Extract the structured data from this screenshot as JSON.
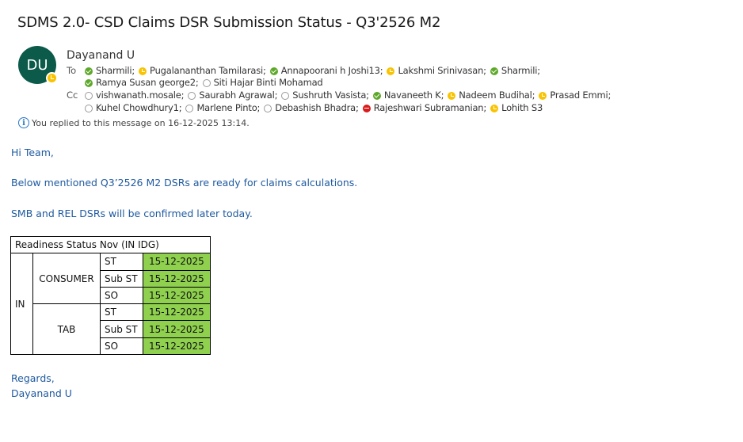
{
  "email": {
    "subject": "SDMS 2.0- CSD Claims DSR Submission Status - Q3'2526 M2",
    "sender": {
      "name": "Dayanand U",
      "initials": "DU",
      "status": "away",
      "avatar_color": "#0b5a4a"
    },
    "to_label": "To",
    "cc_label": "Cc",
    "to": [
      {
        "name": "Sharmili;",
        "status": "available"
      },
      {
        "name": "Pugalananthan Tamilarasi;",
        "status": "away"
      },
      {
        "name": "Annapoorani h Joshi13;",
        "status": "available"
      },
      {
        "name": "Lakshmi Srinivasan;",
        "status": "away"
      },
      {
        "name": "Sharmili;",
        "status": "available"
      },
      {
        "name": "Ramya Susan george2;",
        "status": "available"
      },
      {
        "name": "Siti Hajar Binti Mohamad",
        "status": "offline"
      }
    ],
    "cc": [
      {
        "name": "vishwanath.mosale;",
        "status": "offline"
      },
      {
        "name": "Saurabh Agrawal;",
        "status": "offline"
      },
      {
        "name": "Sushruth Vasista;",
        "status": "offline"
      },
      {
        "name": "Navaneeth K;",
        "status": "available"
      },
      {
        "name": "Nadeem Budihal;",
        "status": "away"
      },
      {
        "name": "Prasad Emmi;",
        "status": "away"
      },
      {
        "name": "Kuhel Chowdhury1;",
        "status": "offline"
      },
      {
        "name": "Marlene Pinto;",
        "status": "offline"
      },
      {
        "name": "Debashish Bhadra;",
        "status": "offline"
      },
      {
        "name": "Rajeshwari Subramanian;",
        "status": "busy"
      },
      {
        "name": "Lohith S3",
        "status": "away"
      }
    ],
    "info_text": "You replied to this message on 16-12-2025 13:14.",
    "body": {
      "greeting": "Hi Team,",
      "line1": "Below mentioned Q3’2526 M2 DSRs are ready for claims calculations.",
      "line2": "SMB and REL DSRs will be confirmed later today.",
      "regards": "Regards,",
      "signature": "Dayanand U"
    },
    "table": {
      "header": "Readiness Status Nov (IN IDG)",
      "region": "IN",
      "groups": [
        {
          "name": "CONSUMER",
          "rows": [
            {
              "type": "ST",
              "date": "15-12-2025"
            },
            {
              "type": "Sub ST",
              "date": "15-12-2025"
            },
            {
              "type": "SO",
              "date": "15-12-2025"
            }
          ]
        },
        {
          "name": "TAB",
          "rows": [
            {
              "type": "ST",
              "date": "15-12-2025"
            },
            {
              "type": "Sub ST",
              "date": "15-12-2025"
            },
            {
              "type": "SO",
              "date": "15-12-2025"
            }
          ]
        }
      ],
      "ready_color": "#8fd14f"
    }
  }
}
